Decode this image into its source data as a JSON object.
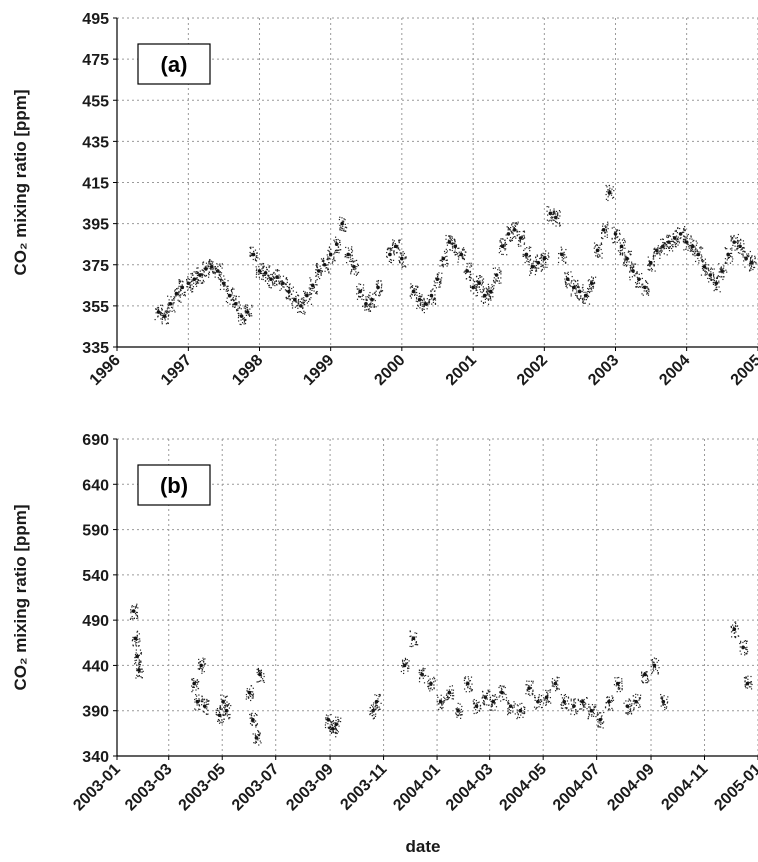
{
  "figure": {
    "xlabel_bottom": "date"
  },
  "chart_data": [
    {
      "type": "scatter",
      "panel_label": "(a)",
      "ylabel": "CO₂ mixing ratio [ppm]",
      "ylim": [
        335,
        495
      ],
      "yticks": [
        335,
        355,
        375,
        395,
        415,
        435,
        455,
        475,
        495
      ],
      "xlim": [
        "1996",
        "2005"
      ],
      "xticks": [
        "1996",
        "1997",
        "1998",
        "1999",
        "2000",
        "2001",
        "2002",
        "2003",
        "2004",
        "2005"
      ],
      "grid": true,
      "series": [
        {
          "x": [
            "1996-08",
            "1996-09",
            "1996-10",
            "1996-11",
            "1996-12",
            "1997-01",
            "1997-02",
            "1997-03",
            "1997-04",
            "1997-05",
            "1997-06",
            "1997-07",
            "1997-08",
            "1997-09",
            "1997-10",
            "1997-11",
            "1997-12",
            "1998-01",
            "1998-02",
            "1998-03",
            "1998-04",
            "1998-05",
            "1998-06",
            "1998-07",
            "1998-08",
            "1998-09",
            "1998-10",
            "1998-11",
            "1998-12",
            "1999-01",
            "1999-02",
            "1999-03",
            "1999-04",
            "1999-05",
            "1999-06",
            "1999-07",
            "1999-08",
            "1999-09",
            "1999-11",
            "1999-12",
            "2000-01",
            "2000-03",
            "2000-04",
            "2000-05",
            "2000-06",
            "2000-07",
            "2000-08",
            "2000-09",
            "2000-10",
            "2000-11",
            "2000-12",
            "2001-01",
            "2001-02",
            "2001-03",
            "2001-04",
            "2001-05",
            "2001-06",
            "2001-07",
            "2001-08",
            "2001-09",
            "2001-10",
            "2001-11",
            "2001-12",
            "2002-01",
            "2002-02",
            "2002-03",
            "2002-04",
            "2002-05",
            "2002-06",
            "2002-07",
            "2002-08",
            "2002-09",
            "2002-10",
            "2002-11",
            "2002-12",
            "2003-01",
            "2003-02",
            "2003-03",
            "2003-04",
            "2003-05",
            "2003-06",
            "2003-07",
            "2003-08",
            "2003-09",
            "2003-10",
            "2003-11",
            "2003-12",
            "2004-01",
            "2004-02",
            "2004-03",
            "2004-04",
            "2004-05",
            "2004-06",
            "2004-07",
            "2004-08",
            "2004-09",
            "2004-10",
            "2004-11",
            "2004-12"
          ],
          "y": [
            352,
            350,
            356,
            361,
            364,
            366,
            368,
            370,
            373,
            374,
            372,
            366,
            360,
            356,
            350,
            352,
            380,
            372,
            371,
            368,
            369,
            366,
            362,
            358,
            355,
            360,
            365,
            372,
            375,
            380,
            385,
            395,
            380,
            374,
            362,
            356,
            358,
            364,
            380,
            384,
            378,
            362,
            358,
            356,
            360,
            368,
            378,
            386,
            384,
            380,
            372,
            364,
            366,
            360,
            362,
            370,
            384,
            390,
            392,
            388,
            380,
            374,
            376,
            378,
            400,
            398,
            380,
            368,
            364,
            362,
            360,
            366,
            382,
            392,
            410,
            390,
            384,
            378,
            372,
            368,
            364,
            376,
            382,
            384,
            386,
            388,
            390,
            386,
            384,
            380,
            374,
            370,
            366,
            372,
            380,
            386,
            384,
            378,
            376
          ]
        }
      ]
    },
    {
      "type": "scatter",
      "panel_label": "(b)",
      "ylabel": "CO₂ mixing ratio [ppm]",
      "xlabel": "date",
      "ylim": [
        340,
        690
      ],
      "yticks": [
        340,
        390,
        440,
        490,
        540,
        590,
        640,
        690
      ],
      "xlim": [
        "2003-01",
        "2005-01"
      ],
      "xticks": [
        "2003-01",
        "2003-03",
        "2003-05",
        "2003-07",
        "2003-09",
        "2003-11",
        "2004-01",
        "2004-03",
        "2004-05",
        "2004-07",
        "2004-09",
        "2004-11",
        "2005-01"
      ],
      "grid": true,
      "series": [
        {
          "x": [
            "2003-01-20",
            "2003-01-22",
            "2003-01-24",
            "2003-01-26",
            "2003-03-30",
            "2003-04-03",
            "2003-04-07",
            "2003-04-11",
            "2003-04-28",
            "2003-05-02",
            "2003-05-06",
            "2003-06-01",
            "2003-06-05",
            "2003-06-09",
            "2003-06-13",
            "2003-08-30",
            "2003-09-04",
            "2003-09-08",
            "2003-10-20",
            "2003-10-24",
            "2003-11-25",
            "2003-12-05",
            "2003-12-15",
            "2003-12-25",
            "2004-01-05",
            "2004-01-15",
            "2004-01-25",
            "2004-02-05",
            "2004-02-15",
            "2004-02-25",
            "2004-03-05",
            "2004-03-15",
            "2004-03-25",
            "2004-04-05",
            "2004-04-15",
            "2004-04-25",
            "2004-05-05",
            "2004-05-15",
            "2004-05-25",
            "2004-06-05",
            "2004-06-15",
            "2004-06-25",
            "2004-07-05",
            "2004-07-15",
            "2004-07-25",
            "2004-08-05",
            "2004-08-15",
            "2004-08-25",
            "2004-09-05",
            "2004-09-15",
            "2004-12-05",
            "2004-12-15",
            "2004-12-20"
          ],
          "y": [
            500,
            470,
            450,
            435,
            420,
            400,
            440,
            395,
            385,
            400,
            390,
            410,
            380,
            360,
            430,
            380,
            370,
            375,
            390,
            400,
            440,
            470,
            430,
            420,
            400,
            410,
            390,
            420,
            395,
            405,
            400,
            410,
            395,
            390,
            415,
            400,
            405,
            420,
            400,
            395,
            400,
            390,
            380,
            400,
            420,
            395,
            400,
            430,
            440,
            400,
            480,
            460,
            420
          ]
        }
      ]
    }
  ]
}
